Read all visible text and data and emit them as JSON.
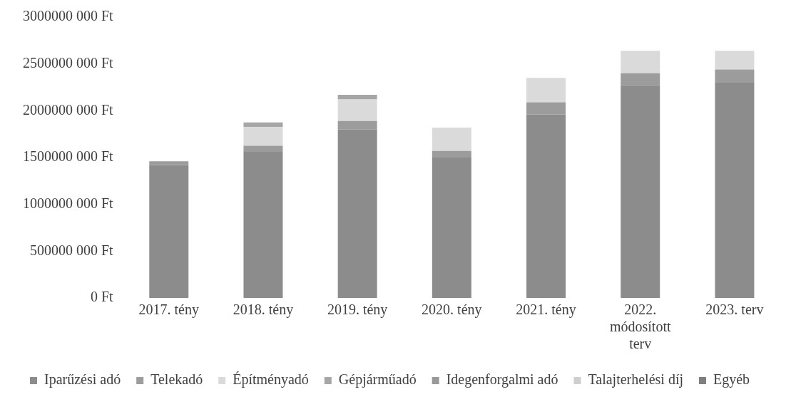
{
  "chart_data": {
    "type": "bar",
    "stacked": true,
    "categories": [
      "2017. tény",
      "2018. tény",
      "2019. tény",
      "2020. tény",
      "2021. tény",
      "2022.\nmódosított\nterv",
      "2023. terv"
    ],
    "series": [
      {
        "name": "Iparűzési adó",
        "color": "#8c8c8c",
        "values": [
          1420000000,
          1560000000,
          1800000000,
          1500000000,
          1960000000,
          2270000000,
          2300000000
        ]
      },
      {
        "name": "Telekadó",
        "color": "#9c9c9c",
        "values": [
          40000000,
          65000000,
          90000000,
          70000000,
          130000000,
          130000000,
          140000000
        ]
      },
      {
        "name": "Építményadó",
        "color": "#dadada",
        "values": [
          0,
          200000000,
          230000000,
          250000000,
          260000000,
          240000000,
          200000000
        ]
      },
      {
        "name": "Gépjárműadó",
        "color": "#a6a6a6",
        "values": [
          0,
          50000000,
          50000000,
          0,
          0,
          0,
          0
        ]
      },
      {
        "name": "Idegenforgalmi adó",
        "color": "#999999",
        "values": [
          0,
          0,
          0,
          0,
          0,
          0,
          0
        ]
      },
      {
        "name": "Talajterhelési díj",
        "color": "#cfcfcf",
        "values": [
          0,
          0,
          0,
          0,
          0,
          0,
          0
        ]
      },
      {
        "name": "Egyéb",
        "color": "#7f7f7f",
        "values": [
          0,
          0,
          0,
          0,
          0,
          0,
          0
        ]
      }
    ],
    "ylim": [
      0,
      3000000000
    ],
    "yticks": [
      {
        "value": 0,
        "label": "0 Ft"
      },
      {
        "value": 500000000,
        "label": "500000 000 Ft"
      },
      {
        "value": 1000000000,
        "label": "1000000 000 Ft"
      },
      {
        "value": 1500000000,
        "label": "1500000 000 Ft"
      },
      {
        "value": 2000000000,
        "label": "2000000 000 Ft"
      },
      {
        "value": 2500000000,
        "label": "2500000 000 Ft"
      },
      {
        "value": 3000000000,
        "label": "3000000 000 Ft"
      }
    ],
    "grid": false,
    "legend": "bottom"
  }
}
